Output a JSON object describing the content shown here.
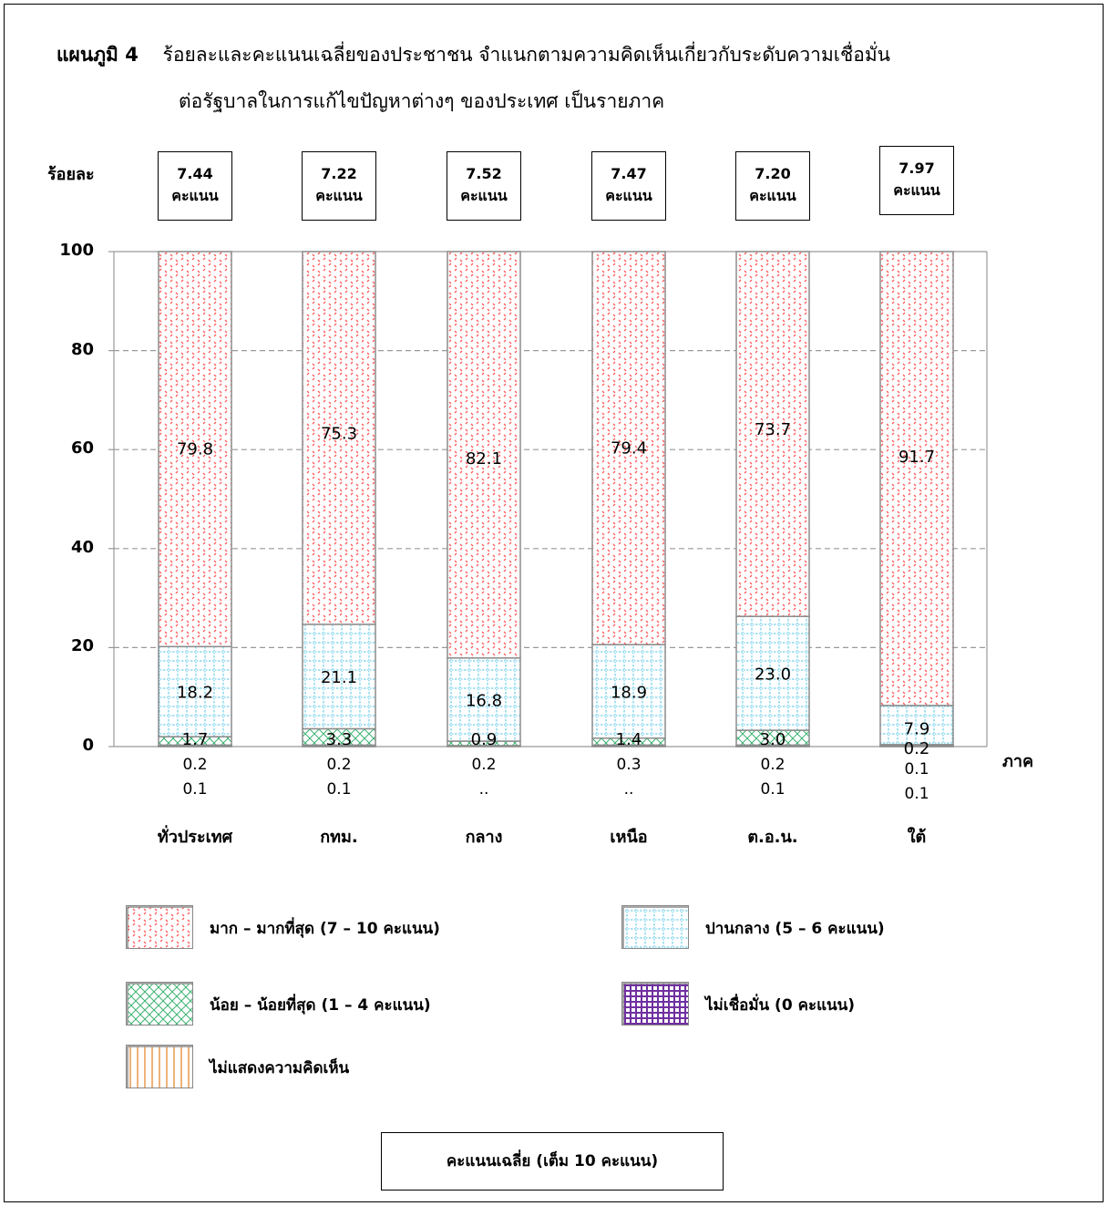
{
  "title": {
    "label": "แผนภูมิ 4",
    "line1": "ร้อยละและคะแนนเฉลี่ยของประชาชน  จำแนกตามความคิดเห็นเกี่ยวกับระดับความเชื่อมั่น",
    "line2": "ต่อรัฐบาลในการแก้ไขปัญหาต่างๆ ของประเทศ  เป็นรายภาค"
  },
  "score_unit": "คะแนน",
  "average_note": "คะแนนเฉลี่ย (เต็ม 10 คะแนน)",
  "colors": {
    "high": "#ff6b6b",
    "neutral": "#5bc8e8",
    "low": "#3cb371",
    "none": "#7030a0",
    "no_opinion": "#e69140",
    "grid": "#999999"
  },
  "chart_data": {
    "type": "bar",
    "stacked": true,
    "ylabel": "ร้อยละ",
    "xlabel": "ภาค",
    "ylim": [
      0,
      100
    ],
    "yticks": [
      0,
      20,
      40,
      60,
      80,
      100
    ],
    "grid": true,
    "legend_position": "bottom",
    "categories": [
      "ทั่วประเทศ",
      "กทม.",
      "กลาง",
      "เหนือ",
      "ต.อ.น.",
      "ใต้"
    ],
    "average_scores": [
      "7.44",
      "7.22",
      "7.52",
      "7.47",
      "7.20",
      "7.97"
    ],
    "series": [
      {
        "key": "no_opinion",
        "name": "ไม่แสดงความคิดเห็น",
        "values": [
          0.1,
          0.1,
          null,
          null,
          0.1,
          0.1
        ],
        "labels": [
          "0.1",
          "0.1",
          "..",
          "..",
          "0.1",
          "0.1"
        ]
      },
      {
        "key": "none",
        "name": "ไม่เชื่อมั่น (0 คะแนน)",
        "values": [
          0.2,
          0.2,
          0.2,
          0.3,
          0.2,
          0.1
        ],
        "labels": [
          "0.2",
          "0.2",
          "0.2",
          "0.3",
          "0.2",
          "0.1"
        ]
      },
      {
        "key": "low",
        "name": "น้อย – น้อยที่สุด (1 – 4 คะแนน)",
        "values": [
          1.7,
          3.3,
          0.9,
          1.4,
          3.0,
          0.2
        ],
        "labels": [
          "1.7",
          "3.3",
          "0.9",
          "1.4",
          "3.0",
          "0.2"
        ]
      },
      {
        "key": "neutral",
        "name": "ปานกลาง (5 – 6 คะแนน)",
        "values": [
          18.2,
          21.1,
          16.8,
          18.9,
          23.0,
          7.9
        ],
        "labels": [
          "18.2",
          "21.1",
          "16.8",
          "18.9",
          "23.0",
          "7.9"
        ]
      },
      {
        "key": "high",
        "name": "มาก – มากที่สุด (7 – 10 คะแนน)",
        "values": [
          79.8,
          75.3,
          82.1,
          79.4,
          73.7,
          91.7
        ],
        "labels": [
          "79.8",
          "75.3",
          "82.1",
          "79.4",
          "73.7",
          "91.7"
        ]
      }
    ]
  },
  "legend": [
    {
      "key": "high",
      "label": "มาก – มากที่สุด (7 – 10 คะแนน)"
    },
    {
      "key": "neutral",
      "label": "ปานกลาง (5 – 6 คะแนน)"
    },
    {
      "key": "low",
      "label": "น้อย – น้อยที่สุด (1 – 4 คะแนน)"
    },
    {
      "key": "none",
      "label": "ไม่เชื่อมั่น (0 คะแนน)"
    },
    {
      "key": "no_opinion",
      "label": "ไม่แสดงความคิดเห็น"
    }
  ]
}
